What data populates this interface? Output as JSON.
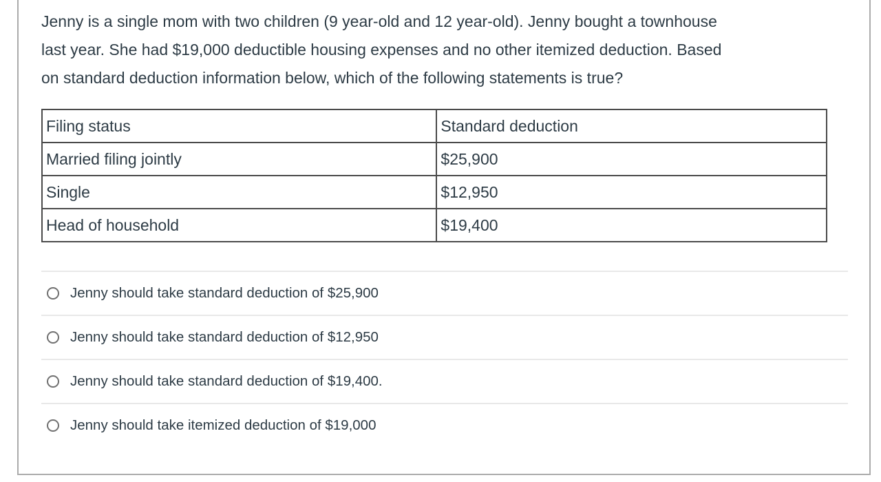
{
  "question": {
    "lines": [
      "Jenny is a single mom with two children (9 year-old and 12 year-old). Jenny bought a townhouse",
      "last year. She had $19,000 deductible housing expenses and no other itemized deduction. Based",
      "on standard deduction information below, which of the following statements is true?"
    ]
  },
  "deduction_table": {
    "headers": [
      "Filing status",
      "Standard deduction"
    ],
    "rows": [
      [
        "Married filing jointly",
        "$25,900"
      ],
      [
        "Single",
        "$12,950"
      ],
      [
        "Head of household",
        "$19,400"
      ]
    ]
  },
  "options": [
    {
      "label": "Jenny should take standard deduction of $25,900",
      "selected": false
    },
    {
      "label": "Jenny should take standard deduction of $12,950",
      "selected": false
    },
    {
      "label": "Jenny should take standard deduction of $19,400.",
      "selected": false
    },
    {
      "label": "Jenny should take itemized deduction of $19,000",
      "selected": false
    }
  ],
  "colors": {
    "text": "#2D3B45",
    "table_border": "#4a4a4a",
    "box_border": "#ababab",
    "separator": "#e8e8e8",
    "radio_border": "#707070"
  }
}
